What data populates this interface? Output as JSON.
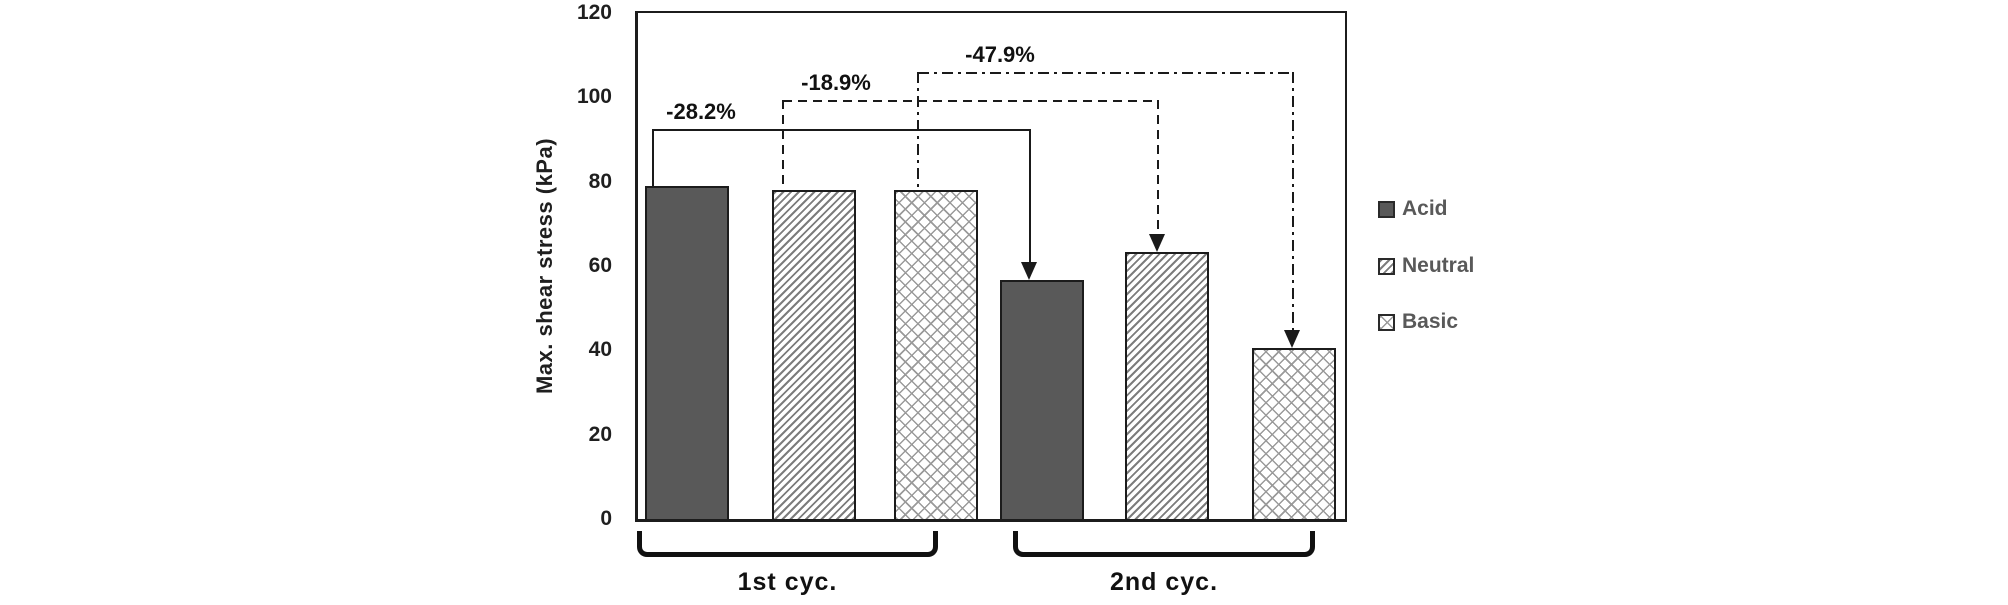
{
  "chart_data": {
    "type": "bar",
    "title": "",
    "xlabel": "",
    "ylabel": "Max. shear stress (kPa)",
    "ylim": [
      0,
      120
    ],
    "yticks": [
      0,
      20,
      40,
      60,
      80,
      100,
      120
    ],
    "categories": [
      "1st cyc.",
      "2nd cyc."
    ],
    "series": [
      {
        "name": "Acid",
        "pattern": "solid-dark-gray",
        "values": [
          79.0,
          56.7
        ]
      },
      {
        "name": "Neutral",
        "pattern": "diagonal-hatch",
        "values": [
          78.0,
          63.3
        ]
      },
      {
        "name": "Basic",
        "pattern": "cross-hatch",
        "values": [
          78.0,
          40.6
        ]
      }
    ],
    "annotations": [
      {
        "label": "-28.2%",
        "series": "Acid",
        "from_group": "1st cyc.",
        "to_group": "2nd cyc.",
        "line_style": "solid"
      },
      {
        "label": "-18.9%",
        "series": "Neutral",
        "from_group": "1st cyc.",
        "to_group": "2nd cyc.",
        "line_style": "dashed"
      },
      {
        "label": "-47.9%",
        "series": "Basic",
        "from_group": "1st cyc.",
        "to_group": "2nd cyc.",
        "line_style": "dash-dot"
      }
    ],
    "legend": {
      "position": "right",
      "entries": [
        "Acid",
        "Neutral",
        "Basic"
      ]
    },
    "grid": false,
    "colors": {
      "acid_fill": "#595959",
      "hatch_line": "#7d7d7d",
      "crosshatch_line": "#9a9a9a",
      "bar_border": "#1c1c1c",
      "axis_line": "#1c1c1c",
      "axis_text": "#1f1f1f",
      "annotation_text": "#111111",
      "legend_text": "#595959"
    }
  }
}
